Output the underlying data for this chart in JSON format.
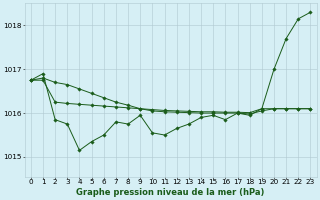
{
  "background_color": "#d6eff5",
  "plot_background_color": "#d6eff5",
  "grid_color": "#b0c8d0",
  "line_color": "#1a5c1a",
  "xlabel": "Graphe pression niveau de la mer (hPa)",
  "ylim": [
    1014.55,
    1018.5
  ],
  "xlim": [
    -0.5,
    23.5
  ],
  "yticks": [
    1015,
    1016,
    1017,
    1018
  ],
  "xticks": [
    0,
    1,
    2,
    3,
    4,
    5,
    6,
    7,
    8,
    9,
    10,
    11,
    12,
    13,
    14,
    15,
    16,
    17,
    18,
    19,
    20,
    21,
    22,
    23
  ],
  "label_fontsize": 6.0,
  "tick_fontsize": 5.2,
  "series1_x": [
    0,
    1,
    2,
    3,
    4,
    5,
    6,
    7,
    8,
    9,
    10,
    11,
    12,
    13,
    14,
    15,
    16,
    17,
    18,
    19,
    20,
    21,
    22,
    23
  ],
  "series1_y": [
    1016.75,
    1016.9,
    1015.85,
    1015.75,
    1015.15,
    1015.35,
    1015.5,
    1015.8,
    1015.75,
    1015.95,
    1015.55,
    1015.5,
    1015.65,
    1015.75,
    1015.9,
    1015.95,
    1015.85,
    1016.0,
    1015.95,
    1016.1,
    1017.0,
    1017.7,
    1018.15,
    1018.3
  ],
  "series2_x": [
    0,
    1,
    2,
    3,
    4,
    5,
    6,
    7,
    8,
    9,
    10,
    11,
    12,
    13,
    14,
    15,
    16,
    17,
    18,
    19,
    20,
    21,
    22,
    23
  ],
  "series2_y": [
    1016.75,
    1016.75,
    1016.25,
    1016.22,
    1016.2,
    1016.18,
    1016.16,
    1016.14,
    1016.12,
    1016.1,
    1016.08,
    1016.06,
    1016.05,
    1016.04,
    1016.03,
    1016.03,
    1016.02,
    1016.02,
    1016.01,
    1016.1,
    1016.1,
    1016.1,
    1016.1,
    1016.1
  ],
  "series3_x": [
    0,
    1,
    2,
    3,
    4,
    5,
    6,
    7,
    8,
    9,
    10,
    11,
    12,
    13,
    14,
    15,
    16,
    17,
    18,
    19,
    20,
    21,
    22,
    23
  ],
  "series3_y": [
    1016.75,
    1016.8,
    1016.7,
    1016.65,
    1016.55,
    1016.45,
    1016.35,
    1016.25,
    1016.18,
    1016.1,
    1016.05,
    1016.03,
    1016.02,
    1016.01,
    1016.0,
    1016.0,
    1016.0,
    1016.0,
    1015.98,
    1016.05,
    1016.1,
    1016.1,
    1016.1,
    1016.1
  ]
}
